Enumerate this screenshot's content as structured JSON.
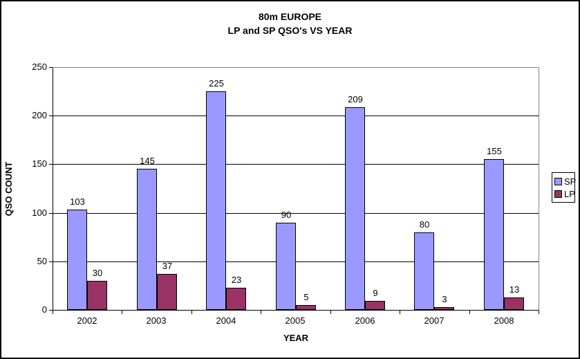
{
  "title": {
    "line1": "80m EUROPE",
    "line2": "LP and SP QSO's VS YEAR"
  },
  "chart_data": {
    "type": "bar",
    "title": "80m EUROPE LP and SP QSO's VS YEAR",
    "categories": [
      "2002",
      "2003",
      "2004",
      "2005",
      "2006",
      "2007",
      "2008"
    ],
    "series": [
      {
        "name": "SP",
        "color": "#9999FF",
        "values": [
          103,
          145,
          225,
          90,
          209,
          80,
          155
        ]
      },
      {
        "name": "LP",
        "color": "#993366",
        "values": [
          30,
          37,
          23,
          5,
          9,
          3,
          13
        ]
      }
    ],
    "xlabel": "YEAR",
    "ylabel": "QSO COUNT",
    "ylim": [
      0,
      250
    ],
    "ytick_step": 50,
    "yticks": [
      0,
      50,
      100,
      150,
      200,
      250
    ],
    "grid": true,
    "data_labels": true,
    "legend_position": "right"
  },
  "colors": {
    "sp_series": "#9999FF",
    "lp_series": "#993366",
    "plot_border": "#808080",
    "gridline": "#000000",
    "background": "#ffffff"
  }
}
